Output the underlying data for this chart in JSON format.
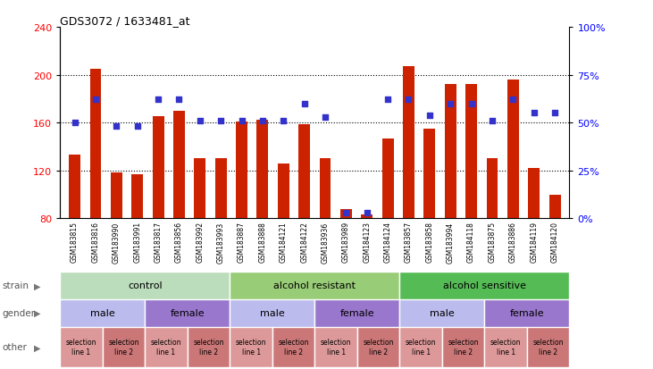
{
  "title": "GDS3072 / 1633481_at",
  "samples": [
    "GSM183815",
    "GSM183816",
    "GSM183990",
    "GSM183991",
    "GSM183817",
    "GSM183856",
    "GSM183992",
    "GSM183993",
    "GSM183887",
    "GSM183888",
    "GSM184121",
    "GSM184122",
    "GSM183936",
    "GSM183989",
    "GSM184123",
    "GSM184124",
    "GSM183857",
    "GSM183858",
    "GSM183994",
    "GSM184118",
    "GSM183875",
    "GSM183886",
    "GSM184119",
    "GSM184120"
  ],
  "counts": [
    133,
    205,
    118,
    117,
    165,
    170,
    130,
    130,
    161,
    162,
    126,
    159,
    130,
    88,
    83,
    147,
    207,
    155,
    192,
    192,
    130,
    196,
    122,
    100
  ],
  "percentiles": [
    50,
    62,
    48,
    48,
    62,
    62,
    51,
    51,
    51,
    51,
    51,
    60,
    53,
    3,
    3,
    62,
    62,
    54,
    60,
    60,
    51,
    62,
    55,
    55
  ],
  "ylim_left": [
    80,
    240
  ],
  "ylim_right": [
    0,
    100
  ],
  "yticks_left": [
    80,
    120,
    160,
    200,
    240
  ],
  "yticks_right": [
    0,
    25,
    50,
    75,
    100
  ],
  "bar_color": "#cc2200",
  "dot_color": "#3333cc",
  "strain_groups": [
    {
      "label": "control",
      "start": 0,
      "end": 8,
      "color": "#bbddbb"
    },
    {
      "label": "alcohol resistant",
      "start": 8,
      "end": 16,
      "color": "#99cc77"
    },
    {
      "label": "alcohol sensitive",
      "start": 16,
      "end": 24,
      "color": "#55bb55"
    }
  ],
  "gender_groups": [
    {
      "label": "male",
      "start": 0,
      "end": 4,
      "color": "#bbbbee"
    },
    {
      "label": "female",
      "start": 4,
      "end": 8,
      "color": "#9977cc"
    },
    {
      "label": "male",
      "start": 8,
      "end": 12,
      "color": "#bbbbee"
    },
    {
      "label": "female",
      "start": 12,
      "end": 16,
      "color": "#9977cc"
    },
    {
      "label": "male",
      "start": 16,
      "end": 20,
      "color": "#bbbbee"
    },
    {
      "label": "female",
      "start": 20,
      "end": 24,
      "color": "#9977cc"
    }
  ],
  "other_groups": [
    {
      "label": "selection\nline 1",
      "start": 0,
      "end": 2,
      "color": "#dd9999"
    },
    {
      "label": "selection\nline 2",
      "start": 2,
      "end": 4,
      "color": "#cc7777"
    },
    {
      "label": "selection\nline 1",
      "start": 4,
      "end": 6,
      "color": "#dd9999"
    },
    {
      "label": "selection\nline 2",
      "start": 6,
      "end": 8,
      "color": "#cc7777"
    },
    {
      "label": "selection\nline 1",
      "start": 8,
      "end": 10,
      "color": "#dd9999"
    },
    {
      "label": "selection\nline 2",
      "start": 10,
      "end": 12,
      "color": "#cc7777"
    },
    {
      "label": "selection\nline 1",
      "start": 12,
      "end": 14,
      "color": "#dd9999"
    },
    {
      "label": "selection\nline 2",
      "start": 14,
      "end": 16,
      "color": "#cc7777"
    },
    {
      "label": "selection\nline 1",
      "start": 16,
      "end": 18,
      "color": "#dd9999"
    },
    {
      "label": "selection\nline 2",
      "start": 18,
      "end": 20,
      "color": "#cc7777"
    },
    {
      "label": "selection\nline 1",
      "start": 20,
      "end": 22,
      "color": "#dd9999"
    },
    {
      "label": "selection\nline 2",
      "start": 22,
      "end": 24,
      "color": "#cc7777"
    }
  ],
  "legend_count_color": "#cc2200",
  "legend_pct_color": "#3333cc",
  "fig_bg": "#ffffff",
  "xtick_bg": "#cccccc",
  "row_label_color": "#555555"
}
